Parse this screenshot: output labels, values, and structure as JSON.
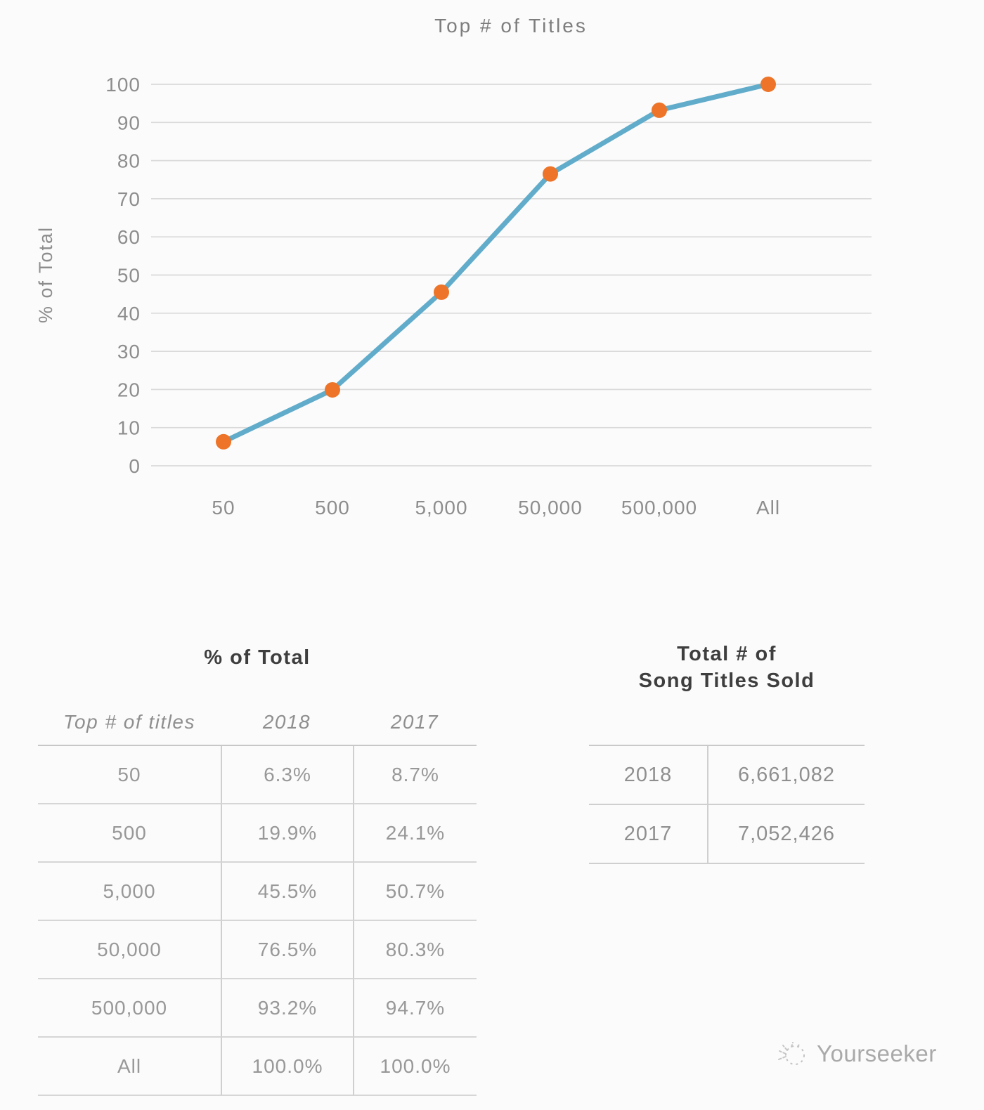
{
  "chart_data": [
    {
      "type": "line",
      "title": "Top # of Titles",
      "xlabel": "",
      "ylabel": "% of Total",
      "categories": [
        "50",
        "500",
        "5,000",
        "50,000",
        "500,000",
        "All"
      ],
      "series": [
        {
          "name": "2018",
          "values": [
            6.3,
            19.9,
            45.5,
            76.5,
            93.2,
            100.0
          ]
        }
      ],
      "ylim": [
        0,
        100
      ],
      "ytick_step": 10,
      "grid": true,
      "legend": "none",
      "colors": {
        "line": "#61acca",
        "marker": "#ed7428",
        "grid": "#dadada",
        "axis_text": "#8d8d8d",
        "title_text": "#7d7d7d"
      }
    },
    {
      "type": "table",
      "title": "% of Total",
      "columns": [
        "Top # of titles",
        "2018",
        "2017"
      ],
      "rows": [
        [
          "50",
          "6.3%",
          "8.7%"
        ],
        [
          "500",
          "19.9%",
          "24.1%"
        ],
        [
          "5,000",
          "45.5%",
          "50.7%"
        ],
        [
          "50,000",
          "76.5%",
          "80.3%"
        ],
        [
          "500,000",
          "93.2%",
          "94.7%"
        ],
        [
          "All",
          "100.0%",
          "100.0%"
        ]
      ]
    },
    {
      "type": "table",
      "title_lines": [
        "Total # of",
        "Song Titles Sold"
      ],
      "rows": [
        [
          "2018",
          "6,661,082"
        ],
        [
          "2017",
          "7,052,426"
        ]
      ]
    }
  ],
  "watermark": {
    "brand": "Yourseeker"
  }
}
